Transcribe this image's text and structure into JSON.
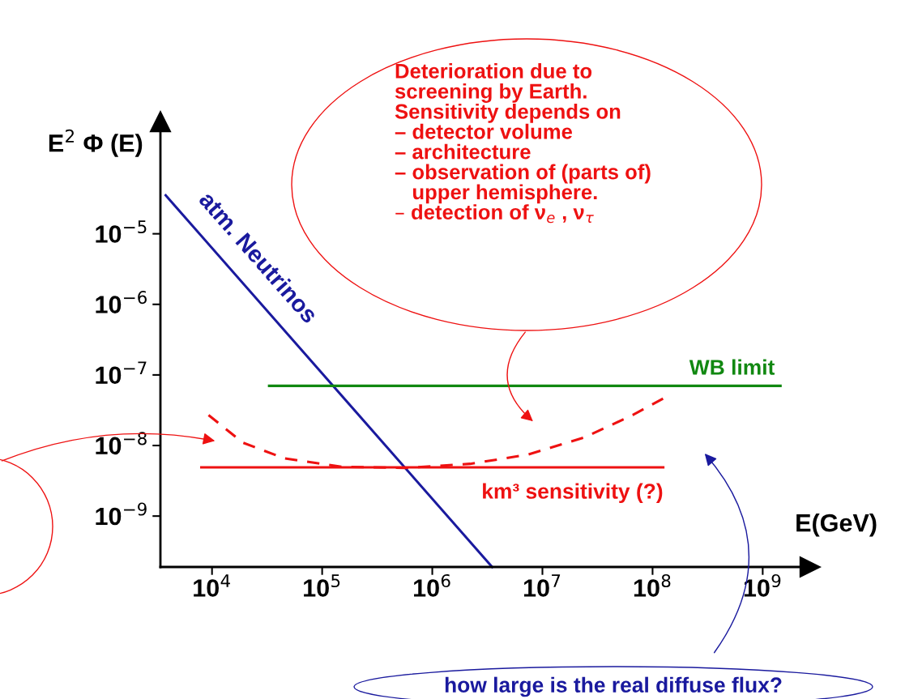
{
  "chart_data": {
    "type": "line",
    "xlabel": "E(GeV)",
    "ylabel": "E$^{2}$ Φ (E)",
    "log": "xy",
    "grid": false,
    "marker": "none",
    "xlim": [
      3400,
      2700000000
    ],
    "ylim": [
      1.9e-10,
      0.00039
    ],
    "xticks": [
      {
        "value": 10000,
        "label": "10$^{4}$"
      },
      {
        "value": 100000,
        "label": "10$^{5}$"
      },
      {
        "value": 1000000,
        "label": "10$^{6}$"
      },
      {
        "value": 10000000,
        "label": "10$^{7}$"
      },
      {
        "value": 100000000,
        "label": "10$^{8}$"
      },
      {
        "value": 1000000000,
        "label": "10$^{9}$"
      }
    ],
    "yticks": [
      {
        "value": 1e-09,
        "label": "10$^{−9}$"
      },
      {
        "value": 1e-08,
        "label": "10$^{−8}$"
      },
      {
        "value": 1e-07,
        "label": "10$^{−7}$"
      },
      {
        "value": 1e-06,
        "label": "10$^{−6}$"
      },
      {
        "value": 1e-05,
        "label": "10$^{−5}$"
      }
    ],
    "series": [
      {
        "name": "atm. Neutrinos",
        "color": "#1a1a9e",
        "line_style": "solid",
        "x": [
          3800,
          3500000
        ],
        "values": [
          3.5e-05,
          1.9e-10
        ]
      },
      {
        "name": "WB limit",
        "color": "#118811",
        "line_style": "solid",
        "x": [
          33000,
          1450000000
        ],
        "values": [
          7e-08,
          7e-08
        ]
      },
      {
        "name": "km³ sensitivity (?)",
        "color": "#ee1111",
        "line_style": "solid",
        "x": [
          8000,
          125000000
        ],
        "values": [
          4.9e-09,
          4.9e-09
        ]
      },
      {
        "color": "#ee1111",
        "line_style": "dashed",
        "x": [
          9300,
          19000,
          45000,
          150000,
          570000,
          2200000,
          7300000,
          24000000,
          66000000,
          130000000
        ],
        "values": [
          2.7e-08,
          1.1e-08,
          6.6e-09,
          5e-09,
          4.8e-09,
          5.5e-09,
          7.4e-09,
          1.3e-08,
          2.7e-08,
          4.8e-08
        ]
      }
    ],
    "annotations": [
      "Deterioration due to\nscreening by Earth.\nSensitivity depends on\n– detector volume\n– architecture\n– observation of (parts of)\n   upper hemisphere.\n– detection of ν$_{e}$ , ν$_{τ}$",
      "how large is the real diffuse flux?"
    ]
  }
}
